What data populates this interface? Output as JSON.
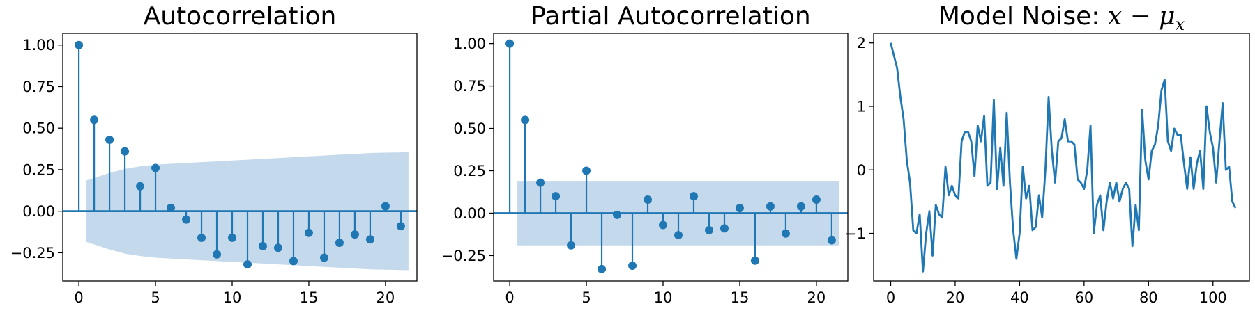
{
  "colors": {
    "series": "#1f77b4",
    "band": "#c4d9ec",
    "axis": "#000000"
  },
  "chart_data": [
    {
      "type": "stem",
      "title": "Autocorrelation",
      "xlim": [
        -1.05,
        22.05
      ],
      "ylim": [
        -0.42,
        1.07
      ],
      "xticks": [
        0,
        5,
        10,
        15,
        20
      ],
      "xtick_labels": [
        "0",
        "5",
        "10",
        "15",
        "20"
      ],
      "yticks": [
        -0.25,
        0.0,
        0.25,
        0.5,
        0.75,
        1.0
      ],
      "ytick_labels": [
        "−0.25",
        "0.00",
        "0.25",
        "0.50",
        "0.75",
        "1.00"
      ],
      "grid": false,
      "x": [
        0,
        1,
        2,
        3,
        4,
        5,
        6,
        7,
        8,
        9,
        10,
        11,
        12,
        13,
        14,
        15,
        16,
        17,
        18,
        19,
        20,
        21
      ],
      "values": [
        1.0,
        0.55,
        0.43,
        0.36,
        0.15,
        0.26,
        0.02,
        -0.05,
        -0.16,
        -0.26,
        -0.16,
        -0.32,
        -0.21,
        -0.22,
        -0.3,
        -0.13,
        -0.28,
        -0.19,
        -0.14,
        -0.17,
        0.03,
        -0.09
      ],
      "confidence_band": {
        "x": [
          0.5,
          1,
          2,
          3,
          4,
          5,
          6,
          7,
          8,
          9,
          10,
          11,
          12,
          13,
          14,
          15,
          16,
          17,
          18,
          19,
          20,
          21,
          21.5
        ],
        "upper": [
          0.185,
          0.2,
          0.23,
          0.255,
          0.27,
          0.28,
          0.285,
          0.29,
          0.295,
          0.3,
          0.305,
          0.31,
          0.315,
          0.32,
          0.325,
          0.33,
          0.335,
          0.34,
          0.345,
          0.35,
          0.352,
          0.354,
          0.355
        ],
        "lower": [
          -0.185,
          -0.2,
          -0.23,
          -0.255,
          -0.27,
          -0.28,
          -0.285,
          -0.29,
          -0.295,
          -0.3,
          -0.305,
          -0.31,
          -0.315,
          -0.32,
          -0.325,
          -0.33,
          -0.335,
          -0.34,
          -0.345,
          -0.35,
          -0.352,
          -0.354,
          -0.355
        ]
      }
    },
    {
      "type": "stem",
      "title": "Partial Autocorrelation",
      "xlim": [
        -1.05,
        22.05
      ],
      "ylim": [
        -0.4,
        1.06
      ],
      "xticks": [
        0,
        5,
        10,
        15,
        20
      ],
      "xtick_labels": [
        "0",
        "5",
        "10",
        "15",
        "20"
      ],
      "yticks": [
        -0.25,
        0.0,
        0.25,
        0.5,
        0.75,
        1.0
      ],
      "ytick_labels": [
        "−0.25",
        "0.00",
        "0.25",
        "0.50",
        "0.75",
        "1.00"
      ],
      "grid": false,
      "x": [
        0,
        1,
        2,
        3,
        4,
        5,
        6,
        7,
        8,
        9,
        10,
        11,
        12,
        13,
        14,
        15,
        16,
        17,
        18,
        19,
        20,
        21
      ],
      "values": [
        1.0,
        0.55,
        0.18,
        0.1,
        -0.19,
        0.25,
        -0.33,
        -0.01,
        -0.31,
        0.08,
        -0.07,
        -0.13,
        0.1,
        -0.1,
        -0.09,
        0.03,
        -0.28,
        0.04,
        -0.12,
        0.04,
        0.08,
        -0.16
      ],
      "confidence_band": {
        "x": [
          0.5,
          21.5
        ],
        "upper": [
          0.19,
          0.19
        ],
        "lower": [
          -0.19,
          -0.19
        ]
      }
    },
    {
      "type": "line",
      "title": "Model Noise: ",
      "title_math": "x − μ",
      "title_sub": "x",
      "xlim": [
        -5.3,
        111.3
      ],
      "ylim": [
        -1.75,
        2.15
      ],
      "xticks": [
        0,
        20,
        40,
        60,
        80,
        100
      ],
      "xtick_labels": [
        "0",
        "20",
        "40",
        "60",
        "80",
        "100"
      ],
      "yticks": [
        -1,
        0,
        1,
        2
      ],
      "ytick_labels": [
        "−1",
        "0",
        "1",
        "2"
      ],
      "grid": false,
      "values": [
        2.0,
        1.8,
        1.6,
        1.15,
        0.8,
        0.15,
        -0.2,
        -0.95,
        -1.0,
        -0.7,
        -1.6,
        -1.0,
        -0.65,
        -1.35,
        -0.55,
        -0.7,
        -0.75,
        0.05,
        -0.4,
        -0.25,
        -0.4,
        -0.45,
        0.45,
        0.6,
        0.6,
        0.45,
        -0.1,
        0.7,
        0.45,
        0.85,
        -0.25,
        -0.2,
        1.1,
        -0.3,
        0.35,
        -0.25,
        0.9,
        -0.2,
        -0.95,
        -1.4,
        -1.0,
        0.05,
        -0.45,
        -0.25,
        -0.95,
        -0.9,
        -0.4,
        -0.75,
        0.0,
        1.15,
        0.3,
        -0.2,
        0.45,
        0.5,
        0.8,
        0.45,
        0.45,
        0.4,
        -0.15,
        -0.2,
        -0.3,
        0.0,
        0.7,
        -1.0,
        -0.55,
        -0.4,
        -0.95,
        -0.5,
        -0.2,
        -0.45,
        -0.2,
        -0.5,
        -0.3,
        -0.2,
        -0.3,
        -1.2,
        -0.55,
        -0.95,
        0.95,
        0.15,
        -0.15,
        0.3,
        0.4,
        0.7,
        1.25,
        1.42,
        0.45,
        0.3,
        0.65,
        0.55,
        0.55,
        0.1,
        -0.3,
        0.2,
        -0.3,
        0.1,
        0.3,
        -0.3,
        1.0,
        0.6,
        0.35,
        -0.2,
        0.45,
        1.05,
        0.0,
        0.05,
        -0.5,
        -0.6
      ]
    }
  ]
}
